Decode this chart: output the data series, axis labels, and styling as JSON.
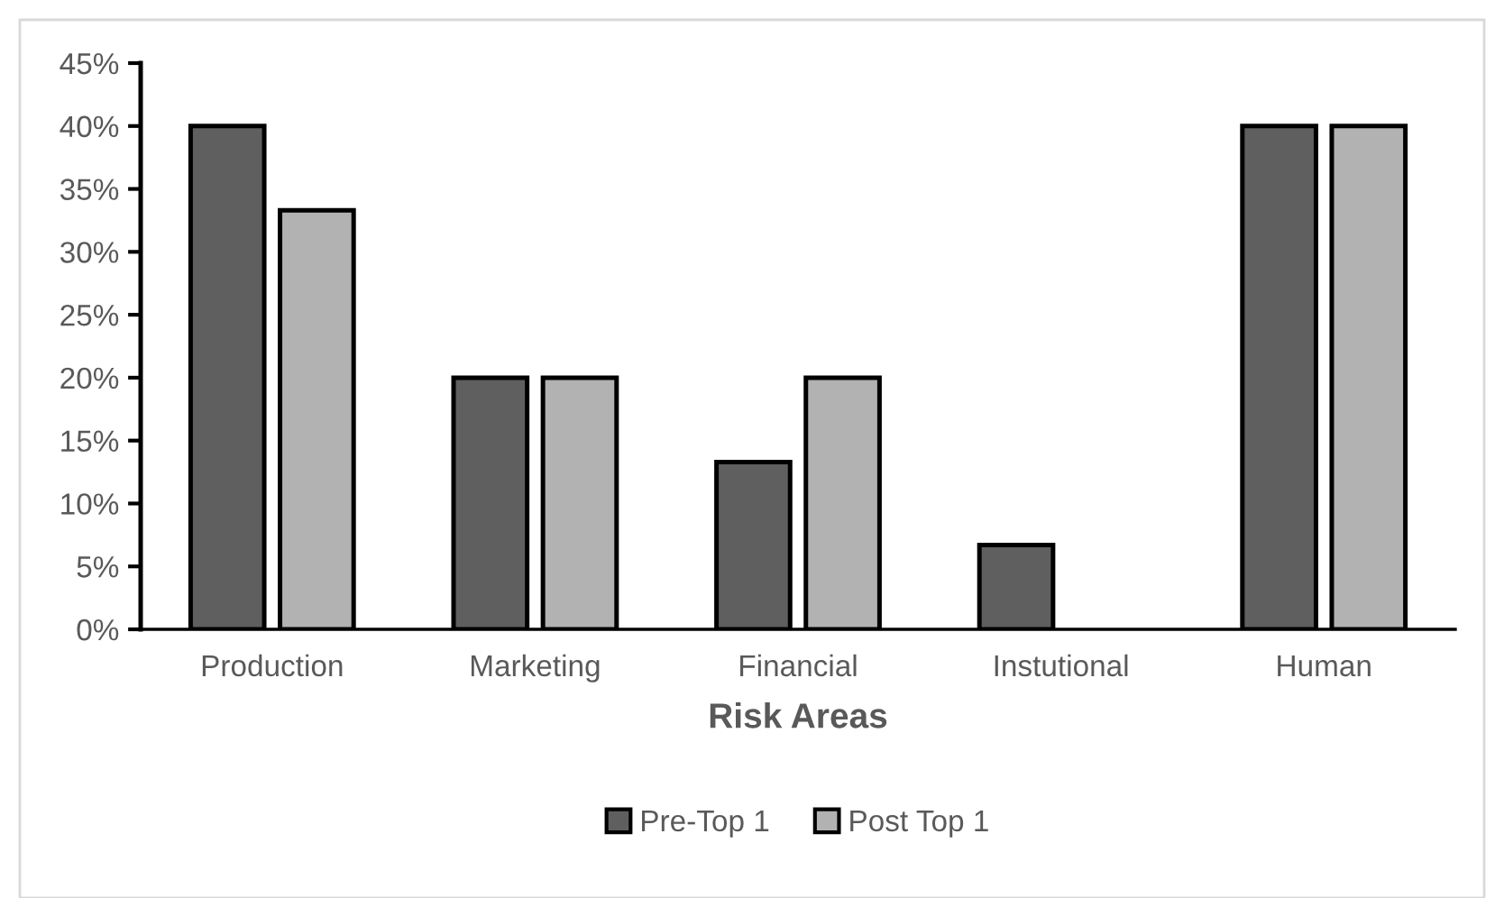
{
  "chart_data": {
    "type": "bar",
    "xlabel": "Risk Areas",
    "categories": [
      "Production",
      "Marketing",
      "Financial",
      "Instutional",
      "Human"
    ],
    "series": [
      {
        "name": "Pre-Top 1",
        "color": "#5f5f5f",
        "values": [
          40,
          20,
          13.3,
          6.7,
          40
        ]
      },
      {
        "name": "Post Top 1",
        "color": "#b2b2b2",
        "values": [
          33.3,
          20,
          20,
          0,
          40
        ]
      }
    ],
    "ylim": [
      0,
      45
    ],
    "yticks": [
      {
        "value": 0,
        "label": "0%"
      },
      {
        "value": 5,
        "label": "5%"
      },
      {
        "value": 10,
        "label": "10%"
      },
      {
        "value": 15,
        "label": "15%"
      },
      {
        "value": 20,
        "label": "20%"
      },
      {
        "value": 25,
        "label": "25%"
      },
      {
        "value": 30,
        "label": "30%"
      },
      {
        "value": 35,
        "label": "35%"
      },
      {
        "value": 40,
        "label": "40%"
      },
      {
        "value": 45,
        "label": "45%"
      }
    ],
    "grid": false,
    "legend": "bottom"
  }
}
